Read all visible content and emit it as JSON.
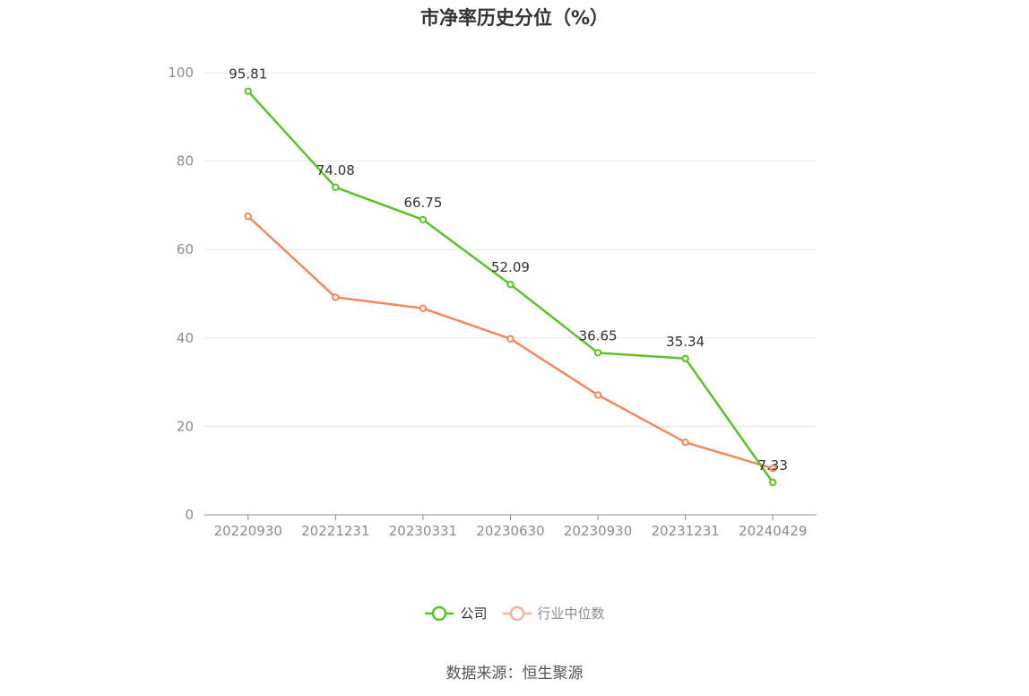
{
  "chart_data": {
    "type": "line",
    "title": "市净率历史分位（%）",
    "categories": [
      "20220930",
      "20221231",
      "20230331",
      "20230630",
      "20230930",
      "20231231",
      "20240429"
    ],
    "yticks": [
      0,
      20,
      40,
      60,
      80,
      100
    ],
    "ylim": [
      0,
      100
    ],
    "grid": true,
    "legend_position": "bottom",
    "series": [
      {
        "name": "公司",
        "color": "#5cc12a",
        "values": [
          95.81,
          74.08,
          66.75,
          52.09,
          36.65,
          35.34,
          7.33
        ],
        "show_labels": true
      },
      {
        "name": "行业中位数",
        "color": "#f08a5d",
        "legend_color": "#f7b49a",
        "values": [
          67.5,
          49.2,
          46.7,
          39.8,
          27.1,
          16.4,
          10.5
        ],
        "show_labels": false
      }
    ]
  },
  "source": "数据来源：恒生聚源"
}
